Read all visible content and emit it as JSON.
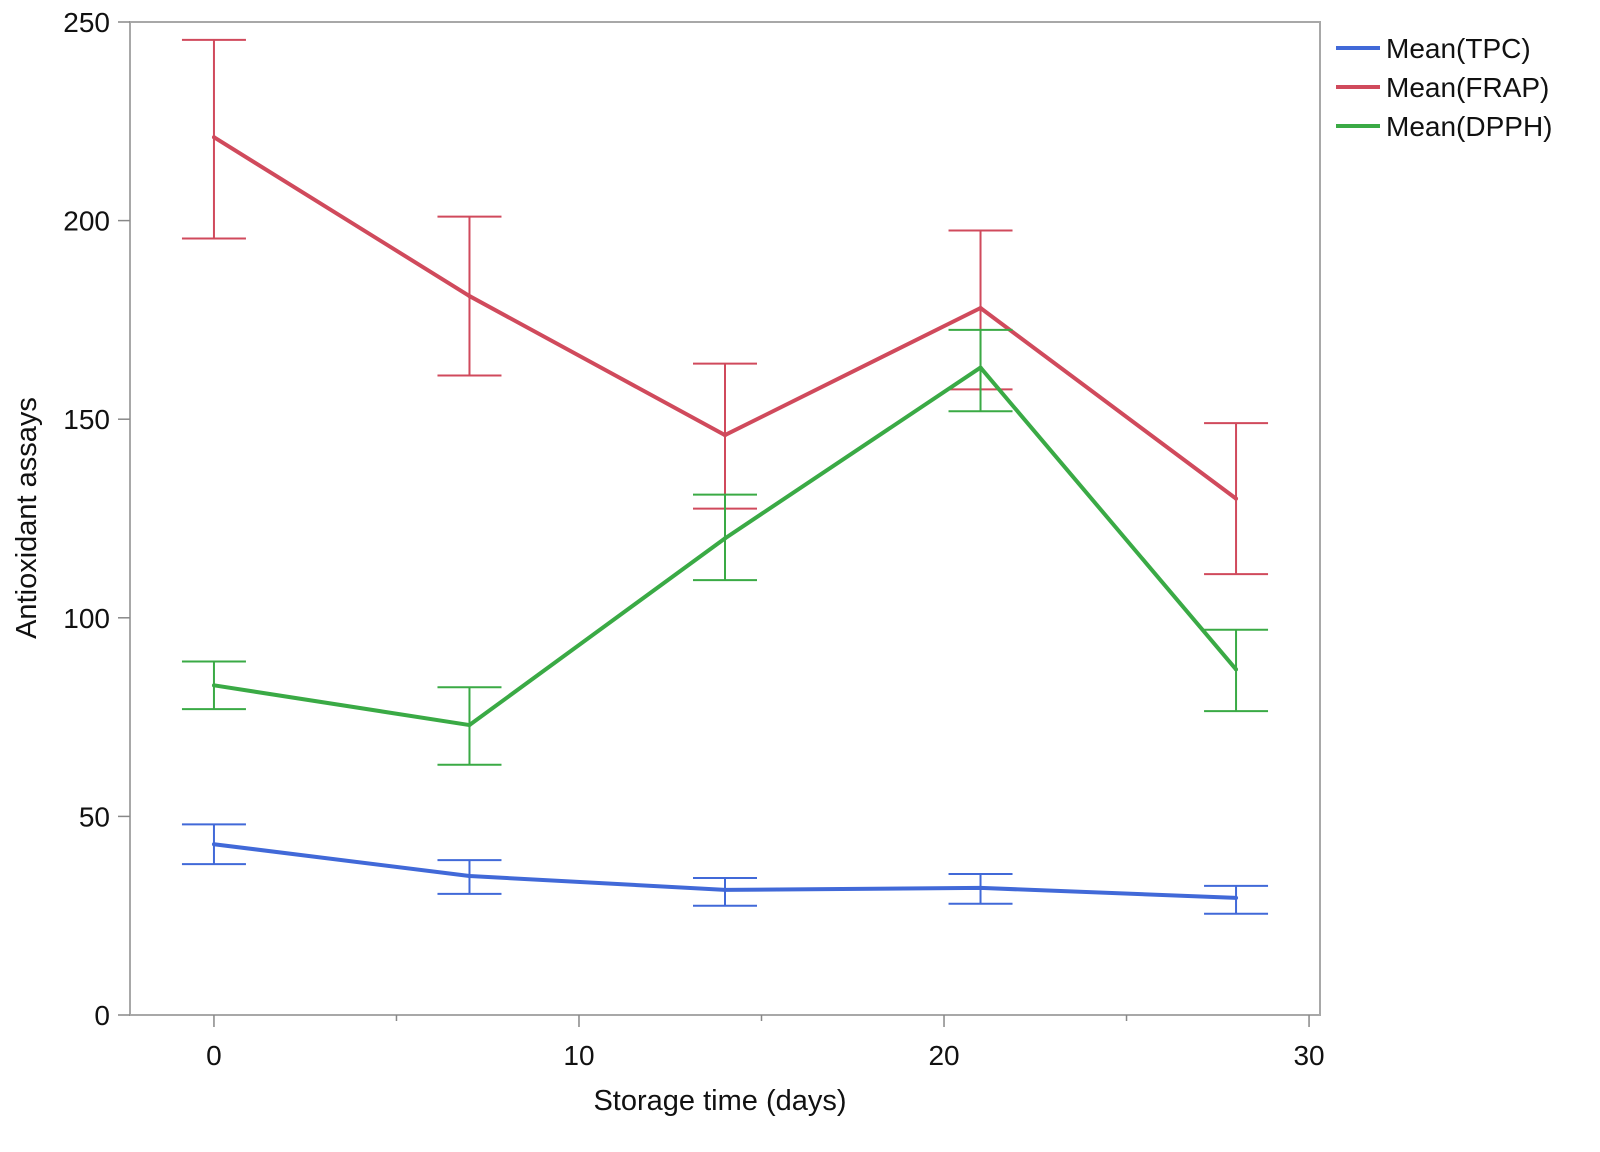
{
  "chart_data": {
    "type": "line",
    "xlabel": "Storage time (days)",
    "ylabel": "Antioxidant assays",
    "xlim": [
      -2.3,
      30.3
    ],
    "ylim": [
      0,
      250
    ],
    "xticks": [
      0,
      10,
      20,
      30
    ],
    "xticks_minor": [
      5,
      15,
      25
    ],
    "yticks": [
      0,
      50,
      100,
      150,
      200,
      250
    ],
    "grid": false,
    "legend_position": "top-right, outside plot area",
    "x": [
      0,
      7,
      14,
      21,
      28
    ],
    "series": [
      {
        "name": "Mean(TPC)",
        "color": "#4169d8",
        "values": [
          43,
          35,
          31.5,
          32,
          29.5
        ],
        "lower": [
          38,
          30.5,
          27.5,
          28,
          25.5
        ],
        "upper": [
          48,
          39,
          34.5,
          35.5,
          32.5
        ]
      },
      {
        "name": "Mean(FRAP)",
        "color": "#d04a5c",
        "values": [
          221,
          181,
          146,
          178,
          130
        ],
        "lower": [
          195.5,
          161,
          127.5,
          157.5,
          111
        ],
        "upper": [
          245.5,
          201,
          164,
          197.5,
          149
        ]
      },
      {
        "name": "Mean(DPPH)",
        "color": "#3aaa45",
        "values": [
          83,
          73,
          120,
          163,
          87
        ],
        "lower": [
          77,
          63,
          109.5,
          152,
          76.5
        ],
        "upper": [
          89,
          82.5,
          131,
          172.5,
          97
        ]
      }
    ]
  }
}
